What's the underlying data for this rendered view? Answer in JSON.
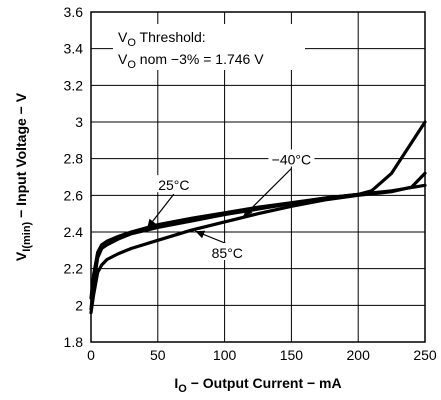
{
  "chart_data": {
    "type": "line",
    "x_ticks": [
      "0",
      "50",
      "100",
      "150",
      "200",
      "250"
    ],
    "y_ticks": [
      "1.8",
      "2",
      "2.2",
      "2.4",
      "2.6",
      "2.8",
      "3",
      "3.2",
      "3.4",
      "3.6"
    ],
    "xlim": [
      0,
      250
    ],
    "ylim": [
      1.8,
      3.6
    ],
    "grid": true,
    "xlabel": {
      "main": "I",
      "sub": "O",
      "rest": " − Output Current − mA"
    },
    "ylabel": {
      "main": "V",
      "sub": "I(min)",
      "rest": " − Input Voltage − V"
    },
    "threshold_note": {
      "line1": {
        "main": "V",
        "sub": "O",
        "rest": " Threshold:"
      },
      "line2": {
        "main": "V",
        "sub": "O",
        "rest": " nom −3% = 1.746 V"
      }
    },
    "series": [
      {
        "name": "25°C",
        "x": [
          0,
          2,
          5,
          8,
          12,
          20,
          30,
          50,
          75,
          100,
          125,
          150,
          175,
          200,
          225,
          250
        ],
        "y": [
          1.98,
          2.12,
          2.26,
          2.31,
          2.33,
          2.36,
          2.39,
          2.425,
          2.46,
          2.495,
          2.525,
          2.555,
          2.585,
          2.605,
          2.625,
          2.655
        ]
      },
      {
        "name": "−40°C",
        "x": [
          0,
          2,
          5,
          8,
          12,
          20,
          30,
          50,
          75,
          100,
          125,
          150,
          175,
          200,
          210,
          225,
          250
        ],
        "y": [
          2.04,
          2.17,
          2.29,
          2.33,
          2.35,
          2.375,
          2.4,
          2.44,
          2.475,
          2.505,
          2.535,
          2.56,
          2.585,
          2.605,
          2.625,
          2.72,
          3.0
        ]
      },
      {
        "name": "85°C",
        "x": [
          0,
          2,
          5,
          8,
          12,
          20,
          30,
          50,
          75,
          100,
          125,
          150,
          175,
          200,
          225,
          240,
          250
        ],
        "y": [
          1.96,
          2.06,
          2.18,
          2.22,
          2.25,
          2.28,
          2.31,
          2.355,
          2.41,
          2.455,
          2.5,
          2.54,
          2.575,
          2.6,
          2.62,
          2.645,
          2.72
        ]
      }
    ]
  }
}
